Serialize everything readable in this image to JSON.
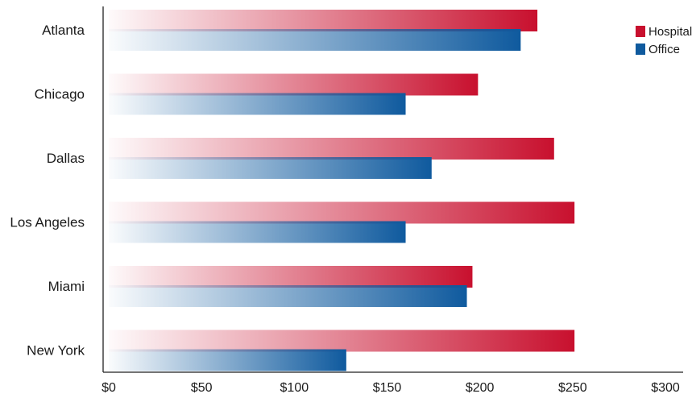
{
  "chart_data": {
    "type": "bar",
    "orientation": "horizontal",
    "title": "",
    "xlabel": "",
    "ylabel": "",
    "categories": [
      "Atlanta",
      "Chicago",
      "Dallas",
      "Los Angeles",
      "Miami",
      "New York"
    ],
    "series": [
      {
        "name": "Hospital",
        "color": "#c8102e",
        "values": [
          231,
          199,
          240,
          251,
          196,
          251
        ]
      },
      {
        "name": "Office",
        "color": "#0f5a9e",
        "values": [
          222,
          160,
          174,
          160,
          193,
          128
        ]
      }
    ],
    "x_ticks": [
      "$0",
      "$50",
      "$100",
      "$150",
      "$200",
      "$250",
      "$300"
    ],
    "x_tick_values": [
      0,
      50,
      100,
      150,
      200,
      250,
      300
    ],
    "xlim": [
      0,
      300
    ],
    "grid": false,
    "legend_position": "top-right"
  }
}
